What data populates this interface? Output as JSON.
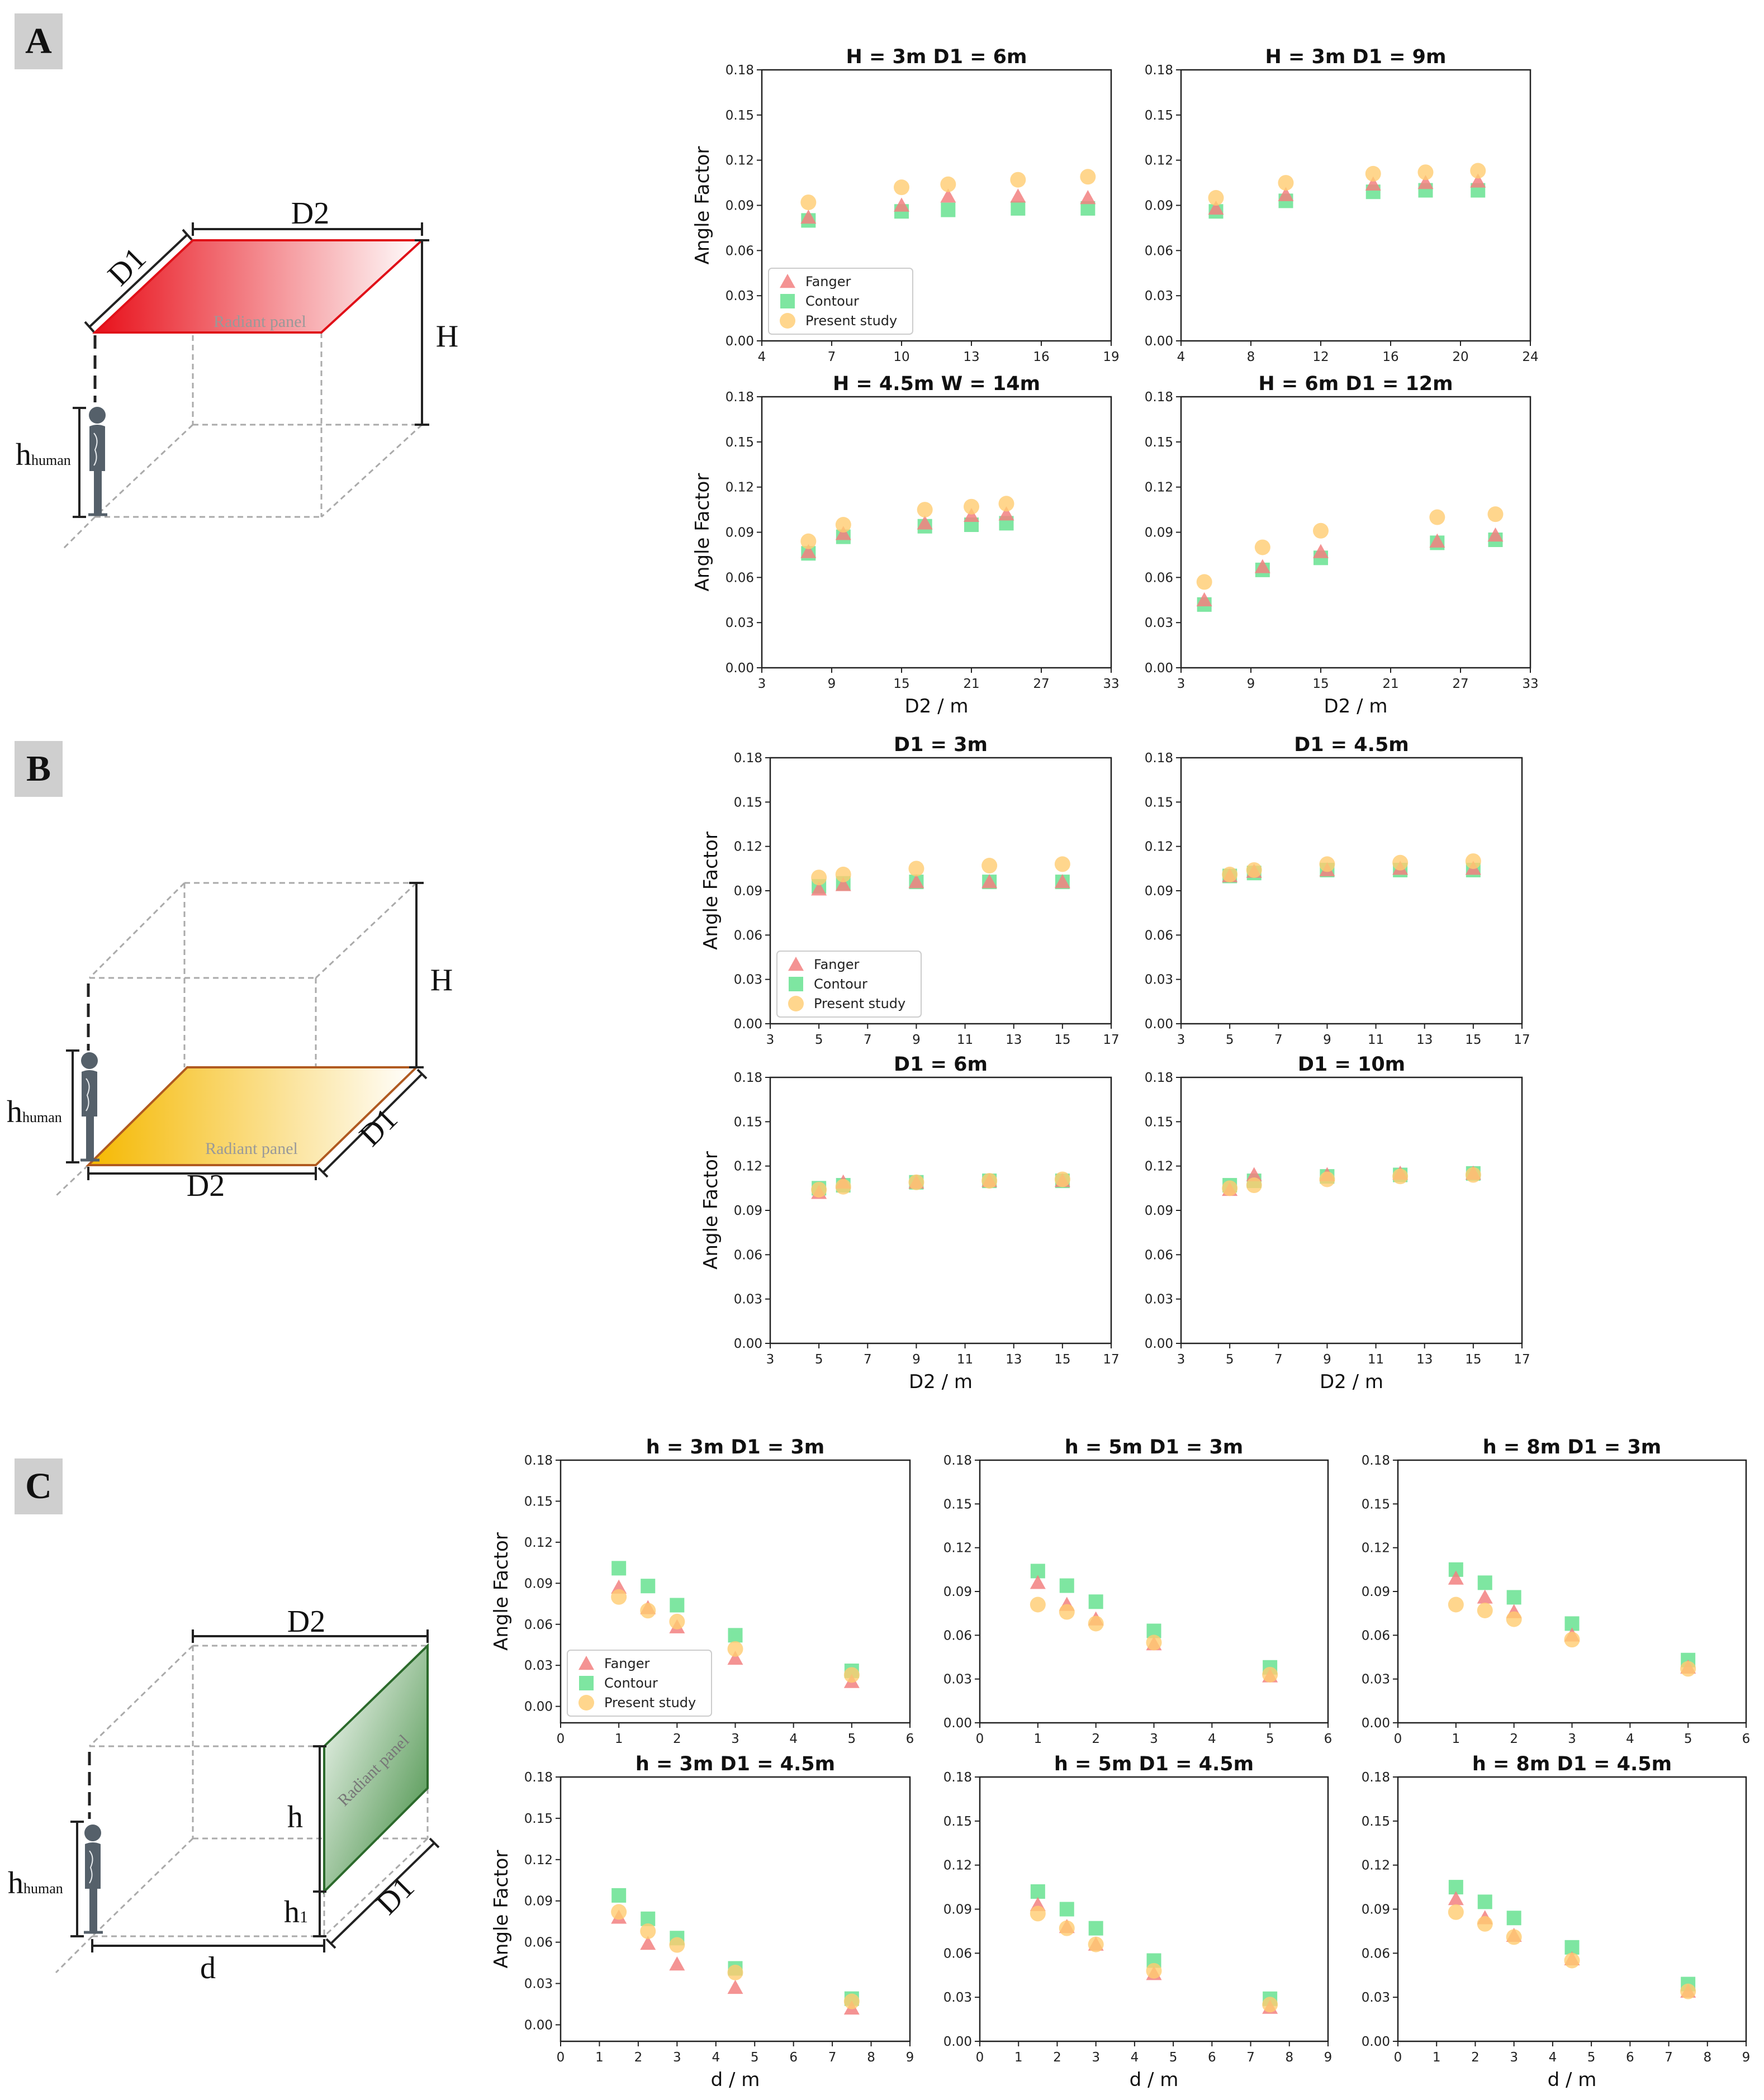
{
  "sections": [
    {
      "label": "A"
    },
    {
      "label": "B"
    },
    {
      "label": "C"
    }
  ],
  "diagrams": {
    "a": {
      "d1": "D1",
      "d2": "D2",
      "h": "H",
      "h_human": "h",
      "h_human_sub": "human",
      "panel": "Radiant panel",
      "panel_color": "#e8101a"
    },
    "b": {
      "d1": "D1",
      "d2": "D2",
      "h": "H",
      "h_human": "h",
      "h_human_sub": "human",
      "panel": "Radiant panel",
      "panel_color": "#f5b800"
    },
    "c": {
      "d1": "D1",
      "d2": "D2",
      "d": "d",
      "h": "h",
      "h1": "h",
      "h1_sub": "1",
      "h_human": "h",
      "h_human_sub": "human",
      "panel": "Radiant panel",
      "panel_color": "#3c8a3c"
    }
  },
  "series_styles": [
    {
      "name": "Fanger",
      "marker": "triangle",
      "color": "#f28080"
    },
    {
      "name": "Contour",
      "marker": "square",
      "color": "#5ee08a"
    },
    {
      "name": "Present study",
      "marker": "circle",
      "color": "#ffcc70"
    }
  ],
  "chart_data": [
    {
      "type": "scatter",
      "title": "H = 3m  D1 = 6m",
      "xlabel": "",
      "ylabel": "Angle Factor",
      "xlim": [
        4,
        19
      ],
      "xticks": [
        4,
        7,
        10,
        13,
        16,
        19
      ],
      "ylim": [
        0,
        0.18
      ],
      "yticks": [
        "0.00",
        "0.03",
        "0.06",
        "0.09",
        "0.12",
        "0.15",
        "0.18"
      ],
      "legend": "lower-left",
      "x": [
        6,
        10,
        12,
        15,
        18
      ],
      "series": [
        {
          "name": "Fanger",
          "values": [
            0.082,
            0.09,
            0.096,
            0.096,
            0.095
          ]
        },
        {
          "name": "Contour",
          "values": [
            0.08,
            0.086,
            0.087,
            0.088,
            0.088
          ]
        },
        {
          "name": "Present study",
          "values": [
            0.092,
            0.102,
            0.104,
            0.107,
            0.109
          ]
        }
      ]
    },
    {
      "type": "scatter",
      "title": "H = 3m  D1 = 9m",
      "xlabel": "",
      "ylabel": "",
      "xlim": [
        4,
        24
      ],
      "xticks": [
        4,
        8,
        12,
        16,
        20,
        24
      ],
      "ylim": [
        0,
        0.18
      ],
      "yticks": [
        "0.00",
        "0.03",
        "0.06",
        "0.09",
        "0.12",
        "0.15",
        "0.18"
      ],
      "legend": "none",
      "x": [
        6,
        10,
        15,
        18,
        21
      ],
      "series": [
        {
          "name": "Fanger",
          "values": [
            0.088,
            0.097,
            0.104,
            0.105,
            0.106
          ]
        },
        {
          "name": "Contour",
          "values": [
            0.086,
            0.093,
            0.099,
            0.1,
            0.1
          ]
        },
        {
          "name": "Present study",
          "values": [
            0.095,
            0.105,
            0.111,
            0.112,
            0.113
          ]
        }
      ]
    },
    {
      "type": "scatter",
      "title": "H = 4.5m  W = 14m",
      "xlabel": "D2 / m",
      "ylabel": "Angle Factor",
      "xlim": [
        3,
        33
      ],
      "xticks": [
        3,
        9,
        15,
        21,
        27,
        33
      ],
      "ylim": [
        0,
        0.18
      ],
      "yticks": [
        "0.00",
        "0.03",
        "0.06",
        "0.09",
        "0.12",
        "0.15",
        "0.18"
      ],
      "legend": "none",
      "x": [
        7,
        10,
        17,
        21,
        24
      ],
      "series": [
        {
          "name": "Fanger",
          "values": [
            0.077,
            0.089,
            0.096,
            0.101,
            0.102
          ]
        },
        {
          "name": "Contour",
          "values": [
            0.076,
            0.087,
            0.094,
            0.095,
            0.096
          ]
        },
        {
          "name": "Present study",
          "values": [
            0.084,
            0.095,
            0.105,
            0.107,
            0.109
          ]
        }
      ]
    },
    {
      "type": "scatter",
      "title": "H = 6m  D1 = 12m",
      "xlabel": "D2 / m",
      "ylabel": "",
      "xlim": [
        3,
        33
      ],
      "xticks": [
        3,
        9,
        15,
        21,
        27,
        33
      ],
      "ylim": [
        0,
        0.18
      ],
      "yticks": [
        "0.00",
        "0.03",
        "0.06",
        "0.09",
        "0.12",
        "0.15",
        "0.18"
      ],
      "legend": "none",
      "x": [
        5,
        10,
        15,
        25,
        30
      ],
      "series": [
        {
          "name": "Fanger",
          "values": [
            0.045,
            0.067,
            0.077,
            0.084,
            0.088
          ]
        },
        {
          "name": "Contour",
          "values": [
            0.042,
            0.065,
            0.073,
            0.083,
            0.085
          ]
        },
        {
          "name": "Present study",
          "values": [
            0.057,
            0.08,
            0.091,
            0.1,
            0.102
          ]
        }
      ]
    },
    {
      "type": "scatter",
      "title": "D1 = 3m",
      "xlabel": "",
      "ylabel": "Angle Factor",
      "xlim": [
        3,
        17
      ],
      "xticks": [
        3,
        5,
        7,
        9,
        11,
        13,
        15,
        17
      ],
      "ylim": [
        0,
        0.18
      ],
      "yticks": [
        "0.00",
        "0.03",
        "0.06",
        "0.09",
        "0.12",
        "0.15",
        "0.18"
      ],
      "legend": "lower-left",
      "x": [
        5,
        6,
        9,
        12,
        15
      ],
      "series": [
        {
          "name": "Fanger",
          "values": [
            0.091,
            0.094,
            0.096,
            0.096,
            0.096
          ]
        },
        {
          "name": "Contour",
          "values": [
            0.093,
            0.095,
            0.096,
            0.096,
            0.096
          ]
        },
        {
          "name": "Present study",
          "values": [
            0.099,
            0.101,
            0.105,
            0.107,
            0.108
          ]
        }
      ]
    },
    {
      "type": "scatter",
      "title": "D1 = 4.5m",
      "xlabel": "",
      "ylabel": "",
      "xlim": [
        3,
        17
      ],
      "xticks": [
        3,
        5,
        7,
        9,
        11,
        13,
        15,
        17
      ],
      "ylim": [
        0,
        0.18
      ],
      "yticks": [
        "0.00",
        "0.03",
        "0.06",
        "0.09",
        "0.12",
        "0.15",
        "0.18"
      ],
      "legend": "none",
      "x": [
        5,
        6,
        9,
        12,
        15
      ],
      "series": [
        {
          "name": "Fanger",
          "values": [
            0.1,
            0.103,
            0.104,
            0.105,
            0.105
          ]
        },
        {
          "name": "Contour",
          "values": [
            0.1,
            0.102,
            0.104,
            0.104,
            0.104
          ]
        },
        {
          "name": "Present study",
          "values": [
            0.101,
            0.104,
            0.108,
            0.109,
            0.11
          ]
        }
      ]
    },
    {
      "type": "scatter",
      "title": "D1 = 6m",
      "xlabel": "D2 / m",
      "ylabel": "Angle Factor",
      "xlim": [
        3,
        17
      ],
      "xticks": [
        3,
        5,
        7,
        9,
        11,
        13,
        15,
        17
      ],
      "ylim": [
        0,
        0.18
      ],
      "yticks": [
        "0.00",
        "0.03",
        "0.06",
        "0.09",
        "0.12",
        "0.15",
        "0.18"
      ],
      "legend": "none",
      "x": [
        5,
        6,
        9,
        12,
        15
      ],
      "series": [
        {
          "name": "Fanger",
          "values": [
            0.102,
            0.109,
            0.109,
            0.11,
            0.11
          ]
        },
        {
          "name": "Contour",
          "values": [
            0.105,
            0.107,
            0.109,
            0.11,
            0.11
          ]
        },
        {
          "name": "Present study",
          "values": [
            0.104,
            0.106,
            0.109,
            0.11,
            0.111
          ]
        }
      ]
    },
    {
      "type": "scatter",
      "title": "D1 = 10m",
      "xlabel": "D2 / m",
      "ylabel": "",
      "xlim": [
        3,
        17
      ],
      "xticks": [
        3,
        5,
        7,
        9,
        11,
        13,
        15,
        17
      ],
      "ylim": [
        0,
        0.18
      ],
      "yticks": [
        "0.00",
        "0.03",
        "0.06",
        "0.09",
        "0.12",
        "0.15",
        "0.18"
      ],
      "legend": "none",
      "x": [
        5,
        6,
        9,
        12,
        15
      ],
      "series": [
        {
          "name": "Fanger",
          "values": [
            0.104,
            0.114,
            0.114,
            0.115,
            0.115
          ]
        },
        {
          "name": "Contour",
          "values": [
            0.107,
            0.11,
            0.113,
            0.114,
            0.115
          ]
        },
        {
          "name": "Present study",
          "values": [
            0.105,
            0.107,
            0.111,
            0.113,
            0.114
          ]
        }
      ]
    },
    {
      "type": "scatter",
      "title": "h = 3m  D1 = 3m",
      "xlabel": "",
      "ylabel": "Angle Factor",
      "xlim": [
        0,
        6
      ],
      "xticks": [
        0,
        1,
        2,
        3,
        4,
        5,
        6
      ],
      "ylim": [
        -0.012,
        0.18
      ],
      "yticks": [
        "0.00",
        "0.03",
        "0.06",
        "0.09",
        "0.12",
        "0.15",
        "0.18"
      ],
      "legend": "lower-left",
      "x": [
        1,
        1.5,
        2,
        3,
        5
      ],
      "series": [
        {
          "name": "Fanger",
          "values": [
            0.087,
            0.072,
            0.058,
            0.035,
            0.018
          ]
        },
        {
          "name": "Contour",
          "values": [
            0.101,
            0.088,
            0.074,
            0.052,
            0.026
          ]
        },
        {
          "name": "Present study",
          "values": [
            0.08,
            0.07,
            0.062,
            0.042,
            0.023
          ]
        }
      ]
    },
    {
      "type": "scatter",
      "title": "h = 5m  D1 = 3m",
      "xlabel": "",
      "ylabel": "",
      "xlim": [
        0,
        6
      ],
      "xticks": [
        0,
        1,
        2,
        3,
        4,
        5,
        6
      ],
      "ylim": [
        0,
        0.18
      ],
      "yticks": [
        "0.00",
        "0.03",
        "0.06",
        "0.09",
        "0.12",
        "0.15",
        "0.18"
      ],
      "legend": "none",
      "x": [
        1,
        1.5,
        2,
        3,
        5
      ],
      "series": [
        {
          "name": "Fanger",
          "values": [
            0.096,
            0.081,
            0.071,
            0.054,
            0.032
          ]
        },
        {
          "name": "Contour",
          "values": [
            0.104,
            0.094,
            0.083,
            0.063,
            0.038
          ]
        },
        {
          "name": "Present study",
          "values": [
            0.081,
            0.076,
            0.068,
            0.055,
            0.033
          ]
        }
      ]
    },
    {
      "type": "scatter",
      "title": "h = 8m  D1 = 3m",
      "xlabel": "",
      "ylabel": "",
      "xlim": [
        0,
        6
      ],
      "xticks": [
        0,
        1,
        2,
        3,
        4,
        5,
        6
      ],
      "ylim": [
        0,
        0.18
      ],
      "yticks": [
        "0.00",
        "0.03",
        "0.06",
        "0.09",
        "0.12",
        "0.15",
        "0.18"
      ],
      "legend": "none",
      "x": [
        1,
        1.5,
        2,
        3,
        5
      ],
      "series": [
        {
          "name": "Fanger",
          "values": [
            0.099,
            0.086,
            0.076,
            0.06,
            0.038
          ]
        },
        {
          "name": "Contour",
          "values": [
            0.105,
            0.096,
            0.086,
            0.068,
            0.043
          ]
        },
        {
          "name": "Present study",
          "values": [
            0.081,
            0.077,
            0.071,
            0.057,
            0.037
          ]
        }
      ]
    },
    {
      "type": "scatter",
      "title": "h = 3m  D1 = 4.5m",
      "xlabel": "d / m",
      "ylabel": "Angle Factor",
      "xlim": [
        0,
        9
      ],
      "xticks": [
        0,
        1,
        2,
        3,
        4,
        5,
        6,
        7,
        8,
        9
      ],
      "ylim": [
        -0.012,
        0.18
      ],
      "yticks": [
        "0.00",
        "0.03",
        "0.06",
        "0.09",
        "0.12",
        "0.15",
        "0.18"
      ],
      "legend": "none",
      "x": [
        1.5,
        2.25,
        3,
        4.5,
        7.5
      ],
      "series": [
        {
          "name": "Fanger",
          "values": [
            0.078,
            0.059,
            0.044,
            0.027,
            0.012
          ]
        },
        {
          "name": "Contour",
          "values": [
            0.094,
            0.077,
            0.063,
            0.041,
            0.019
          ]
        },
        {
          "name": "Present study",
          "values": [
            0.082,
            0.068,
            0.058,
            0.038,
            0.017
          ]
        }
      ]
    },
    {
      "type": "scatter",
      "title": "h = 5m  D1 = 4.5m",
      "xlabel": "d / m",
      "ylabel": "",
      "xlim": [
        0,
        9
      ],
      "xticks": [
        0,
        1,
        2,
        3,
        4,
        5,
        6,
        7,
        8,
        9
      ],
      "ylim": [
        0,
        0.18
      ],
      "yticks": [
        "0.00",
        "0.03",
        "0.06",
        "0.09",
        "0.12",
        "0.15",
        "0.18"
      ],
      "legend": "none",
      "x": [
        1.5,
        2.25,
        3,
        4.5,
        7.5
      ],
      "series": [
        {
          "name": "Fanger",
          "values": [
            0.093,
            0.078,
            0.066,
            0.046,
            0.023
          ]
        },
        {
          "name": "Contour",
          "values": [
            0.102,
            0.09,
            0.077,
            0.055,
            0.029
          ]
        },
        {
          "name": "Present study",
          "values": [
            0.087,
            0.077,
            0.066,
            0.048,
            0.025
          ]
        }
      ]
    },
    {
      "type": "scatter",
      "title": "h = 8m  D1 = 4.5m",
      "xlabel": "d / m",
      "ylabel": "",
      "xlim": [
        0,
        9
      ],
      "xticks": [
        0,
        1,
        2,
        3,
        4,
        5,
        6,
        7,
        8,
        9
      ],
      "ylim": [
        0,
        0.18
      ],
      "yticks": [
        "0.00",
        "0.03",
        "0.06",
        "0.09",
        "0.12",
        "0.15",
        "0.18"
      ],
      "legend": "none",
      "x": [
        1.5,
        2.25,
        3,
        4.5,
        7.5
      ],
      "series": [
        {
          "name": "Fanger",
          "values": [
            0.097,
            0.084,
            0.072,
            0.056,
            0.034
          ]
        },
        {
          "name": "Contour",
          "values": [
            0.105,
            0.095,
            0.084,
            0.064,
            0.039
          ]
        },
        {
          "name": "Present study",
          "values": [
            0.088,
            0.08,
            0.071,
            0.055,
            0.034
          ]
        }
      ]
    }
  ]
}
